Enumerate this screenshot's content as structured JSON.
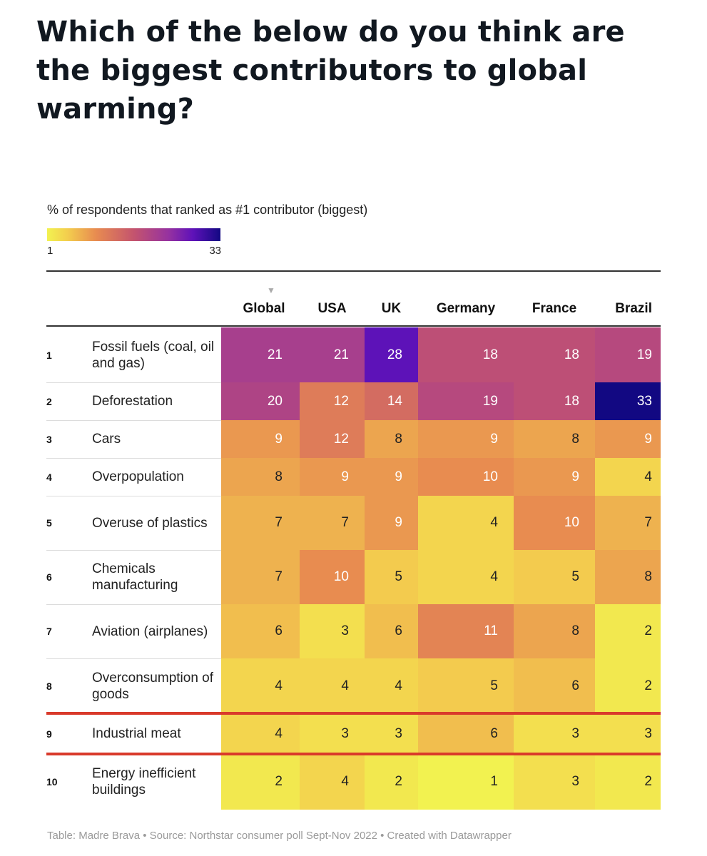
{
  "title": "Which of the below do you think are the biggest contributors to global warming?",
  "legend": {
    "caption": "% of respondents that ranked as #1 contributor (biggest)",
    "min": "1",
    "max": "33"
  },
  "sort_indicator": "▼",
  "footer": "Table: Madre Brava • Source: Northstar consumer poll Sept-Nov 2022 • Created with Datawrapper",
  "chart_data": {
    "type": "heatmap",
    "value_range": [
      1,
      33
    ],
    "sorted_by": "Global",
    "highlighted_row": "Industrial meat",
    "columns": [
      "Global",
      "USA",
      "UK",
      "Germany",
      "France",
      "Brazil"
    ],
    "rows": [
      {
        "rank": "1",
        "label": "Fossil fuels (coal, oil and gas)",
        "values": [
          21,
          21,
          28,
          18,
          18,
          19
        ]
      },
      {
        "rank": "2",
        "label": "Deforestation",
        "values": [
          20,
          12,
          14,
          19,
          18,
          33
        ]
      },
      {
        "rank": "3",
        "label": "Cars",
        "values": [
          9,
          12,
          8,
          9,
          8,
          9
        ]
      },
      {
        "rank": "4",
        "label": "Overpopulation",
        "values": [
          8,
          9,
          9,
          10,
          9,
          4
        ]
      },
      {
        "rank": "5",
        "label": "Overuse of plastics",
        "values": [
          7,
          7,
          9,
          4,
          10,
          7
        ]
      },
      {
        "rank": "6",
        "label": "Chemicals manufacturing",
        "values": [
          7,
          10,
          5,
          4,
          5,
          8
        ]
      },
      {
        "rank": "7",
        "label": "Aviation (airplanes)",
        "values": [
          6,
          3,
          6,
          11,
          8,
          2
        ]
      },
      {
        "rank": "8",
        "label": "Overconsumption of goods",
        "values": [
          4,
          4,
          4,
          5,
          6,
          2
        ]
      },
      {
        "rank": "9",
        "label": "Industrial meat",
        "values": [
          4,
          3,
          3,
          6,
          3,
          3
        ]
      },
      {
        "rank": "10",
        "label": "Energy inefficient buildings",
        "values": [
          2,
          4,
          2,
          1,
          3,
          2
        ]
      }
    ]
  }
}
